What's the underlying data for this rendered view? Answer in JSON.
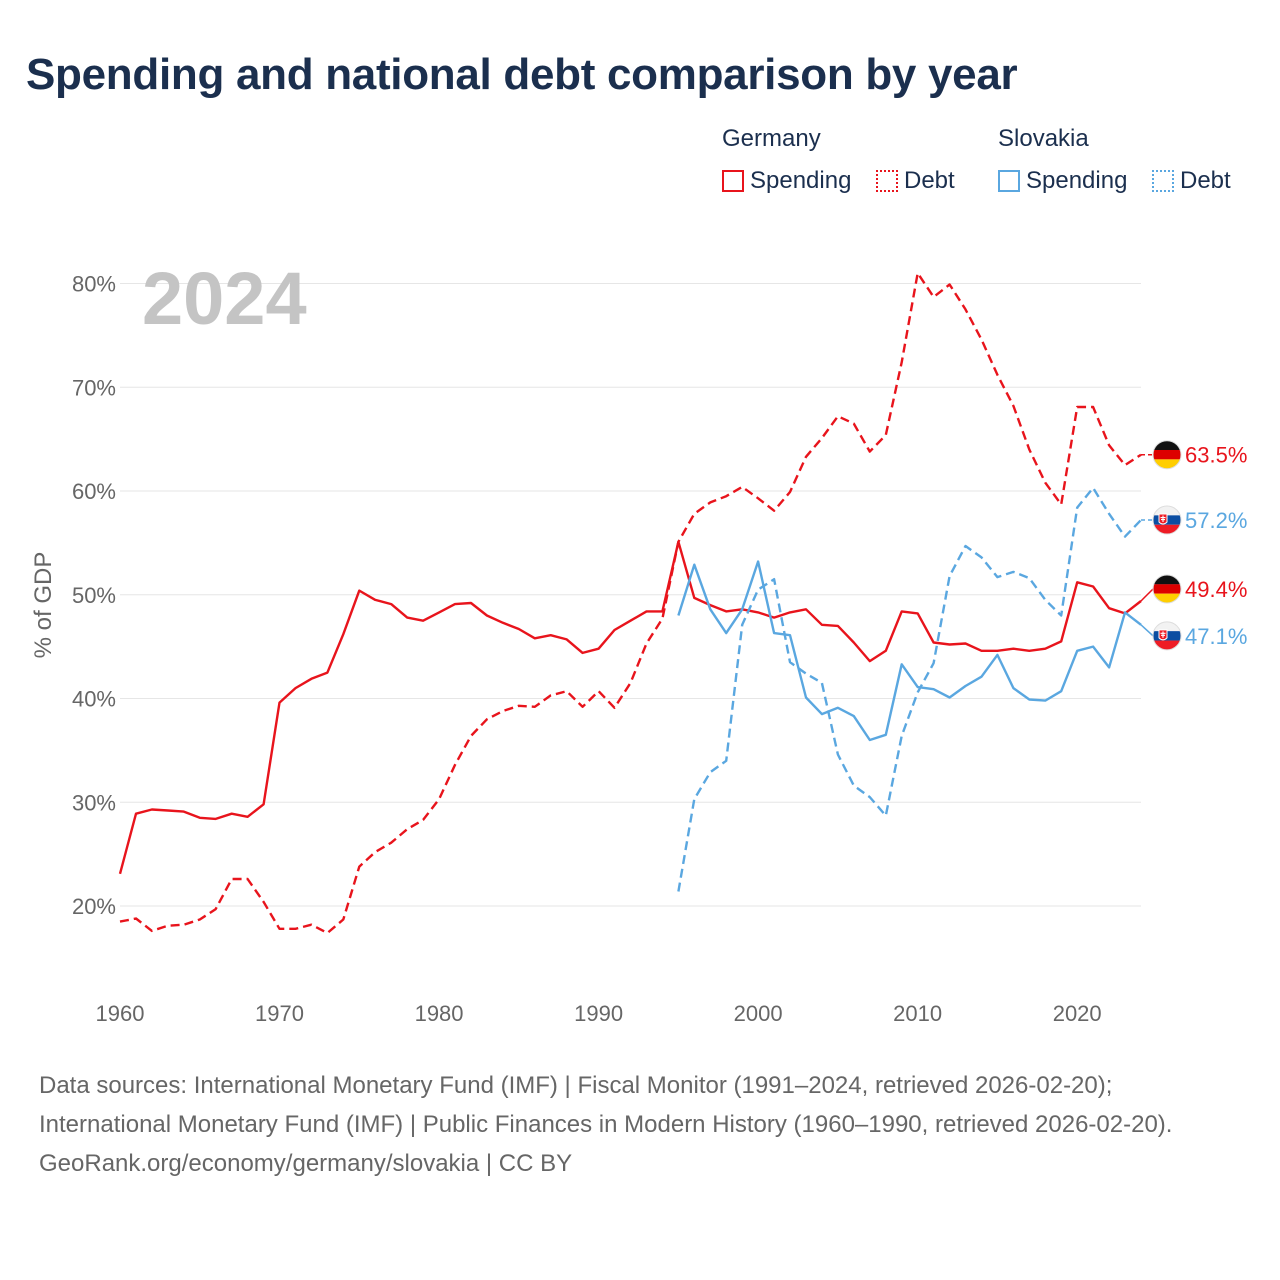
{
  "title": "Spending and national debt comparison by year",
  "year_overlay": "2024",
  "legend": {
    "groups": [
      {
        "country": "Germany",
        "color": "#e8141c",
        "items": [
          {
            "label": "Spending",
            "style": "solid"
          },
          {
            "label": "Debt",
            "style": "dotted"
          }
        ]
      },
      {
        "country": "Slovakia",
        "color": "#5aa7e0",
        "items": [
          {
            "label": "Spending",
            "style": "solid"
          },
          {
            "label": "Debt",
            "style": "dotted"
          }
        ]
      }
    ]
  },
  "footer": {
    "sources": "Data sources: International Monetary Fund (IMF) | Fiscal Monitor (1991–2024, retrieved 2026-02-20); International Monetary Fund (IMF) | Public Finances in Modern History (1960–1990, retrieved 2026-02-20).",
    "credit": "GeoRank.org/economy/germany/slovakia | CC BY"
  },
  "chart_data": {
    "type": "line",
    "ylabel": "% of GDP",
    "xlabel": "",
    "xlim": [
      1960,
      2024
    ],
    "ylim": [
      13,
      83
    ],
    "x_ticks": [
      1960,
      1970,
      1980,
      1990,
      2000,
      2010,
      2020
    ],
    "y_ticks": [
      20,
      30,
      40,
      50,
      60,
      70,
      80
    ],
    "y_tick_labels": [
      "20%",
      "30%",
      "40%",
      "50%",
      "60%",
      "70%",
      "80%"
    ],
    "grid": "horizontal",
    "series": [
      {
        "name": "Germany Spending",
        "country": "Germany",
        "color": "#e8141c",
        "dash": "solid",
        "end_label": "49.4%",
        "points": [
          [
            1960,
            23.1
          ],
          [
            1961,
            28.9
          ],
          [
            1962,
            29.3
          ],
          [
            1963,
            29.2
          ],
          [
            1964,
            29.1
          ],
          [
            1965,
            28.5
          ],
          [
            1966,
            28.4
          ],
          [
            1967,
            28.9
          ],
          [
            1968,
            28.6
          ],
          [
            1969,
            29.8
          ],
          [
            1970,
            39.6
          ],
          [
            1971,
            41.0
          ],
          [
            1972,
            41.9
          ],
          [
            1973,
            42.5
          ],
          [
            1974,
            46.2
          ],
          [
            1975,
            50.4
          ],
          [
            1976,
            49.5
          ],
          [
            1977,
            49.1
          ],
          [
            1978,
            47.8
          ],
          [
            1979,
            47.5
          ],
          [
            1980,
            48.3
          ],
          [
            1981,
            49.1
          ],
          [
            1982,
            49.2
          ],
          [
            1983,
            48.0
          ],
          [
            1984,
            47.3
          ],
          [
            1985,
            46.7
          ],
          [
            1986,
            45.8
          ],
          [
            1987,
            46.1
          ],
          [
            1988,
            45.7
          ],
          [
            1989,
            44.4
          ],
          [
            1990,
            44.8
          ],
          [
            1991,
            46.6
          ],
          [
            1992,
            47.5
          ],
          [
            1993,
            48.4
          ],
          [
            1994,
            48.4
          ],
          [
            1995,
            55.1
          ],
          [
            1996,
            49.7
          ],
          [
            1997,
            49.0
          ],
          [
            1998,
            48.4
          ],
          [
            1999,
            48.6
          ],
          [
            2000,
            48.3
          ],
          [
            2001,
            47.8
          ],
          [
            2002,
            48.3
          ],
          [
            2003,
            48.6
          ],
          [
            2004,
            47.1
          ],
          [
            2005,
            47.0
          ],
          [
            2006,
            45.4
          ],
          [
            2007,
            43.6
          ],
          [
            2008,
            44.6
          ],
          [
            2009,
            48.4
          ],
          [
            2010,
            48.2
          ],
          [
            2011,
            45.4
          ],
          [
            2012,
            45.2
          ],
          [
            2013,
            45.3
          ],
          [
            2014,
            44.6
          ],
          [
            2015,
            44.6
          ],
          [
            2016,
            44.8
          ],
          [
            2017,
            44.6
          ],
          [
            2018,
            44.8
          ],
          [
            2019,
            45.5
          ],
          [
            2020,
            51.2
          ],
          [
            2021,
            50.8
          ],
          [
            2022,
            48.7
          ],
          [
            2023,
            48.2
          ],
          [
            2024,
            49.4
          ]
        ]
      },
      {
        "name": "Germany Debt",
        "country": "Germany",
        "color": "#e8141c",
        "dash": "dashed",
        "end_label": "63.5%",
        "points": [
          [
            1960,
            18.5
          ],
          [
            1961,
            18.8
          ],
          [
            1962,
            17.6
          ],
          [
            1963,
            18.1
          ],
          [
            1964,
            18.2
          ],
          [
            1965,
            18.7
          ],
          [
            1966,
            19.7
          ],
          [
            1967,
            22.6
          ],
          [
            1968,
            22.6
          ],
          [
            1969,
            20.4
          ],
          [
            1970,
            17.8
          ],
          [
            1971,
            17.8
          ],
          [
            1972,
            18.2
          ],
          [
            1973,
            17.4
          ],
          [
            1974,
            18.7
          ],
          [
            1975,
            23.8
          ],
          [
            1976,
            25.2
          ],
          [
            1977,
            26.1
          ],
          [
            1978,
            27.4
          ],
          [
            1979,
            28.3
          ],
          [
            1980,
            30.3
          ],
          [
            1981,
            33.6
          ],
          [
            1982,
            36.4
          ],
          [
            1983,
            38.0
          ],
          [
            1984,
            38.8
          ],
          [
            1985,
            39.3
          ],
          [
            1986,
            39.2
          ],
          [
            1987,
            40.3
          ],
          [
            1988,
            40.7
          ],
          [
            1989,
            39.2
          ],
          [
            1990,
            40.7
          ],
          [
            1991,
            39.1
          ],
          [
            1992,
            41.5
          ],
          [
            1993,
            45.3
          ],
          [
            1994,
            47.7
          ],
          [
            1995,
            55.1
          ],
          [
            1996,
            57.8
          ],
          [
            1997,
            58.9
          ],
          [
            1998,
            59.5
          ],
          [
            1999,
            60.4
          ],
          [
            2000,
            59.3
          ],
          [
            2001,
            58.1
          ],
          [
            2002,
            59.9
          ],
          [
            2003,
            63.3
          ],
          [
            2004,
            65.1
          ],
          [
            2005,
            67.2
          ],
          [
            2006,
            66.5
          ],
          [
            2007,
            63.8
          ],
          [
            2008,
            65.4
          ],
          [
            2009,
            72.4
          ],
          [
            2010,
            81.0
          ],
          [
            2011,
            78.7
          ],
          [
            2012,
            79.9
          ],
          [
            2013,
            77.5
          ],
          [
            2014,
            74.6
          ],
          [
            2015,
            71.2
          ],
          [
            2016,
            68.2
          ],
          [
            2017,
            64.0
          ],
          [
            2018,
            60.8
          ],
          [
            2019,
            58.7
          ],
          [
            2020,
            68.1
          ],
          [
            2021,
            68.1
          ],
          [
            2022,
            64.4
          ],
          [
            2023,
            62.5
          ],
          [
            2024,
            63.5
          ]
        ]
      },
      {
        "name": "Slovakia Spending",
        "country": "Slovakia",
        "color": "#5aa7e0",
        "dash": "solid",
        "end_label": "47.1%",
        "points": [
          [
            1995,
            48.0
          ],
          [
            1996,
            52.9
          ],
          [
            1997,
            48.6
          ],
          [
            1998,
            46.3
          ],
          [
            1999,
            48.6
          ],
          [
            2000,
            53.2
          ],
          [
            2001,
            46.3
          ],
          [
            2002,
            46.1
          ],
          [
            2003,
            40.1
          ],
          [
            2004,
            38.5
          ],
          [
            2005,
            39.1
          ],
          [
            2006,
            38.3
          ],
          [
            2007,
            36.0
          ],
          [
            2008,
            36.5
          ],
          [
            2009,
            43.3
          ],
          [
            2010,
            41.1
          ],
          [
            2011,
            40.9
          ],
          [
            2012,
            40.1
          ],
          [
            2013,
            41.2
          ],
          [
            2014,
            42.1
          ],
          [
            2015,
            44.2
          ],
          [
            2016,
            41.0
          ],
          [
            2017,
            39.9
          ],
          [
            2018,
            39.8
          ],
          [
            2019,
            40.7
          ],
          [
            2020,
            44.6
          ],
          [
            2021,
            45.0
          ],
          [
            2022,
            43.0
          ],
          [
            2023,
            48.3
          ],
          [
            2024,
            47.1
          ]
        ]
      },
      {
        "name": "Slovakia Debt",
        "country": "Slovakia",
        "color": "#5aa7e0",
        "dash": "dashed",
        "end_label": "57.2%",
        "points": [
          [
            1995,
            21.4
          ],
          [
            1996,
            30.3
          ],
          [
            1997,
            32.9
          ],
          [
            1998,
            34.0
          ],
          [
            1999,
            47.1
          ],
          [
            2000,
            50.5
          ],
          [
            2001,
            51.5
          ],
          [
            2002,
            43.5
          ],
          [
            2003,
            42.4
          ],
          [
            2004,
            41.5
          ],
          [
            2005,
            34.6
          ],
          [
            2006,
            31.6
          ],
          [
            2007,
            30.5
          ],
          [
            2008,
            28.7
          ],
          [
            2009,
            36.4
          ],
          [
            2010,
            40.6
          ],
          [
            2011,
            43.4
          ],
          [
            2012,
            51.8
          ],
          [
            2013,
            54.7
          ],
          [
            2014,
            53.6
          ],
          [
            2015,
            51.7
          ],
          [
            2016,
            52.2
          ],
          [
            2017,
            51.6
          ],
          [
            2018,
            49.5
          ],
          [
            2019,
            48.0
          ],
          [
            2020,
            58.4
          ],
          [
            2021,
            60.3
          ],
          [
            2022,
            57.8
          ],
          [
            2023,
            55.6
          ],
          [
            2024,
            57.2
          ]
        ]
      }
    ]
  }
}
